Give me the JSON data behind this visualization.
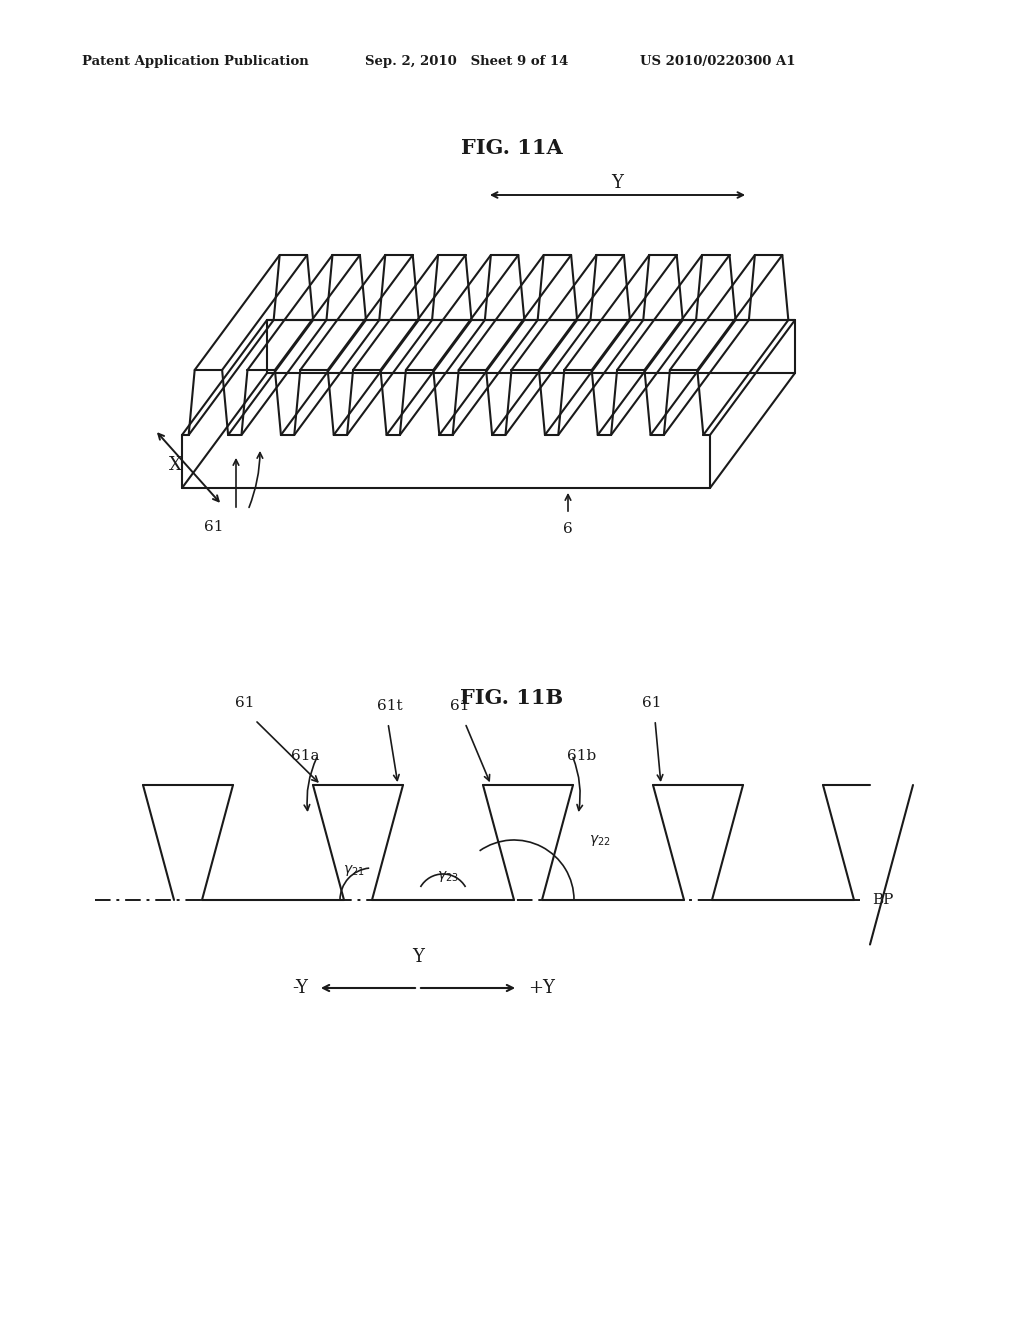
{
  "bg_color": "#ffffff",
  "line_color": "#1a1a1a",
  "header_left": "Patent Application Publication",
  "header_mid": "Sep. 2, 2010   Sheet 9 of 14",
  "header_right": "US 2010/0220300 A1",
  "fig11a_title": "FIG. 11A",
  "fig11b_title": "FIG. 11B",
  "header_fontsize": 9.5,
  "title_fontsize": 15,
  "label_fontsize": 11,
  "lw": 1.5
}
